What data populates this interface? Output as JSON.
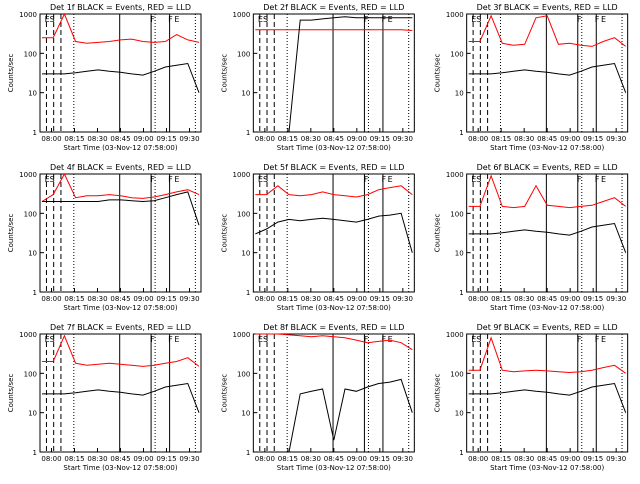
{
  "chart_data": [
    {
      "type": "line",
      "title": "Det 1f BLACK = Events, RED = LLD",
      "xlabel": "Start Time (03-Nov-12 07:58:00)",
      "ylabel": "Counts/sec",
      "ylog": true,
      "ylim": [
        1,
        1000
      ],
      "x_tick_labels": [
        "08:00",
        "08:15",
        "08:30",
        "08:45",
        "09:00",
        "09:15",
        "09:30"
      ],
      "y_tick_labels": [
        "1",
        "10",
        "100",
        "1000"
      ],
      "markers": [
        "ES",
        "F",
        "F",
        "E"
      ],
      "series": [
        {
          "color": "#ff0000",
          "values": [
            250,
            250,
            1000,
            200,
            180,
            190,
            200,
            220,
            230,
            200,
            190,
            200,
            300,
            220,
            190
          ]
        },
        {
          "color": "#000000",
          "values": [
            30,
            30,
            30,
            32,
            35,
            38,
            35,
            33,
            30,
            28,
            35,
            45,
            50,
            55,
            10
          ]
        }
      ]
    },
    {
      "type": "line",
      "title": "Det 2f BLACK = Events, RED = LLD",
      "xlabel": "Start Time (03-Nov-12 07:58:00)",
      "ylabel": "Counts/sec",
      "ylog": true,
      "ylim": [
        1,
        1000
      ],
      "x_tick_labels": [
        "08:00",
        "08:15",
        "08:30",
        "08:45",
        "09:00",
        "09:15",
        "09:30"
      ],
      "y_tick_labels": [
        "1",
        "10",
        "100",
        "1000"
      ],
      "markers": [
        "ES",
        "F",
        "F",
        "E"
      ],
      "series": [
        {
          "color": "#ff0000",
          "values": [
            400,
            400,
            400,
            400,
            400,
            400,
            400,
            400,
            400,
            400,
            400,
            400,
            400,
            400,
            380
          ]
        },
        {
          "color": "#000000",
          "values": [
            1,
            1,
            1,
            1,
            700,
            700,
            750,
            800,
            850,
            800,
            800,
            800,
            800,
            800,
            800
          ]
        }
      ]
    },
    {
      "type": "line",
      "title": "Det 3f BLACK = Events, RED = LLD",
      "xlabel": "Start Time (03-Nov-12 07:58:00)",
      "ylabel": "Counts/sec",
      "ylog": true,
      "ylim": [
        1,
        1000
      ],
      "x_tick_labels": [
        "08:00",
        "08:15",
        "08:30",
        "08:45",
        "09:00",
        "09:15",
        "09:30"
      ],
      "y_tick_labels": [
        "1",
        "10",
        "100",
        "1000"
      ],
      "markers": [
        "ES",
        "F",
        "F",
        "E"
      ],
      "series": [
        {
          "color": "#ff0000",
          "values": [
            200,
            200,
            900,
            180,
            160,
            170,
            800,
            900,
            170,
            180,
            160,
            150,
            200,
            250,
            150
          ]
        },
        {
          "color": "#000000",
          "values": [
            30,
            30,
            30,
            32,
            35,
            38,
            35,
            33,
            30,
            28,
            35,
            45,
            50,
            55,
            10
          ]
        }
      ]
    },
    {
      "type": "line",
      "title": "Det 4f BLACK = Events, RED = LLD",
      "xlabel": "Start Time (03-Nov-12 07:58:00)",
      "ylabel": "Counts/sec",
      "ylog": true,
      "ylim": [
        1,
        1000
      ],
      "x_tick_labels": [
        "08:00",
        "08:15",
        "08:30",
        "08:45",
        "09:00",
        "09:15",
        "09:30"
      ],
      "y_tick_labels": [
        "1",
        "10",
        "100",
        "1000"
      ],
      "markers": [
        "ES",
        "F",
        "F",
        "E"
      ],
      "series": [
        {
          "color": "#ff0000",
          "values": [
            200,
            300,
            1000,
            250,
            280,
            280,
            300,
            280,
            250,
            240,
            260,
            300,
            350,
            400,
            300
          ]
        },
        {
          "color": "#000000",
          "values": [
            200,
            200,
            200,
            200,
            200,
            200,
            220,
            220,
            210,
            200,
            210,
            250,
            300,
            350,
            50
          ]
        }
      ]
    },
    {
      "type": "line",
      "title": "Det 5f BLACK = Events, RED = LLD",
      "xlabel": "Start Time (03-Nov-12 07:58:00)",
      "ylabel": "Counts/sec",
      "ylog": true,
      "ylim": [
        1,
        1000
      ],
      "x_tick_labels": [
        "08:00",
        "08:15",
        "08:30",
        "08:45",
        "09:00",
        "09:15",
        "09:30"
      ],
      "y_tick_labels": [
        "1",
        "10",
        "100",
        "1000"
      ],
      "markers": [
        "ES",
        "F",
        "F",
        "E"
      ],
      "series": [
        {
          "color": "#ff0000",
          "values": [
            300,
            300,
            500,
            300,
            280,
            300,
            350,
            300,
            280,
            260,
            300,
            400,
            450,
            500,
            300
          ]
        },
        {
          "color": "#000000",
          "values": [
            30,
            40,
            60,
            70,
            65,
            70,
            75,
            70,
            65,
            60,
            70,
            85,
            90,
            100,
            10
          ]
        }
      ]
    },
    {
      "type": "line",
      "title": "Det 6f BLACK = Events, RED = LLD",
      "xlabel": "Start Time (03-Nov-12 07:58:00)",
      "ylabel": "Counts/sec",
      "ylog": true,
      "ylim": [
        1,
        1000
      ],
      "x_tick_labels": [
        "08:00",
        "08:15",
        "08:30",
        "08:45",
        "09:00",
        "09:15",
        "09:30"
      ],
      "y_tick_labels": [
        "1",
        "10",
        "100",
        "1000"
      ],
      "markers": [
        "ES",
        "F",
        "F",
        "E"
      ],
      "series": [
        {
          "color": "#ff0000",
          "values": [
            150,
            150,
            900,
            150,
            140,
            150,
            500,
            160,
            150,
            140,
            150,
            160,
            200,
            250,
            150
          ]
        },
        {
          "color": "#000000",
          "values": [
            30,
            30,
            30,
            32,
            35,
            38,
            35,
            33,
            30,
            28,
            35,
            45,
            50,
            55,
            10
          ]
        }
      ]
    },
    {
      "type": "line",
      "title": "Det 7f BLACK = Events, RED = LLD",
      "xlabel": "Start Time (03-Nov-12 07:58:00)",
      "ylabel": "Counts/sec",
      "ylog": true,
      "ylim": [
        1,
        1000
      ],
      "x_tick_labels": [
        "08:00",
        "08:15",
        "08:30",
        "08:45",
        "09:00",
        "09:15",
        "09:30"
      ],
      "y_tick_labels": [
        "1",
        "10",
        "100",
        "1000"
      ],
      "markers": [
        "ES",
        "F",
        "F",
        "E"
      ],
      "series": [
        {
          "color": "#ff0000",
          "values": [
            200,
            200,
            900,
            180,
            160,
            170,
            180,
            170,
            160,
            150,
            160,
            180,
            200,
            250,
            150
          ]
        },
        {
          "color": "#000000",
          "values": [
            30,
            30,
            30,
            32,
            35,
            38,
            35,
            33,
            30,
            28,
            35,
            45,
            50,
            55,
            10
          ]
        }
      ]
    },
    {
      "type": "line",
      "title": "Det 8f BLACK = Events, RED = LLD",
      "xlabel": "Start Time (03-Nov-12 07:58:00)",
      "ylabel": "Counts/sec",
      "ylog": true,
      "ylim": [
        1,
        1000
      ],
      "x_tick_labels": [
        "08:00",
        "08:15",
        "08:30",
        "08:45",
        "09:00",
        "09:15",
        "09:30"
      ],
      "y_tick_labels": [
        "1",
        "10",
        "100",
        "1000"
      ],
      "markers": [
        "ES",
        "F",
        "F",
        "E"
      ],
      "series": [
        {
          "color": "#ff0000",
          "values": [
            1000,
            1000,
            1000,
            950,
            900,
            850,
            900,
            850,
            800,
            700,
            600,
            650,
            700,
            600,
            400
          ]
        },
        {
          "color": "#000000",
          "values": [
            1,
            1,
            1,
            1,
            30,
            35,
            40,
            2,
            40,
            35,
            45,
            55,
            60,
            70,
            10
          ]
        }
      ]
    },
    {
      "type": "line",
      "title": "Det 9f BLACK = Events, RED = LLD",
      "xlabel": "Start Time (03-Nov-12 07:58:00)",
      "ylabel": "Counts/sec",
      "ylog": true,
      "ylim": [
        1,
        1000
      ],
      "x_tick_labels": [
        "08:00",
        "08:15",
        "08:30",
        "08:45",
        "09:00",
        "09:15",
        "09:30"
      ],
      "y_tick_labels": [
        "1",
        "10",
        "100",
        "1000"
      ],
      "markers": [
        "ES",
        "F",
        "F",
        "E"
      ],
      "series": [
        {
          "color": "#ff0000",
          "values": [
            120,
            120,
            800,
            120,
            110,
            115,
            120,
            115,
            110,
            105,
            110,
            120,
            140,
            160,
            100
          ]
        },
        {
          "color": "#000000",
          "values": [
            30,
            30,
            30,
            32,
            35,
            38,
            35,
            33,
            30,
            28,
            35,
            45,
            50,
            55,
            10
          ]
        }
      ]
    }
  ]
}
